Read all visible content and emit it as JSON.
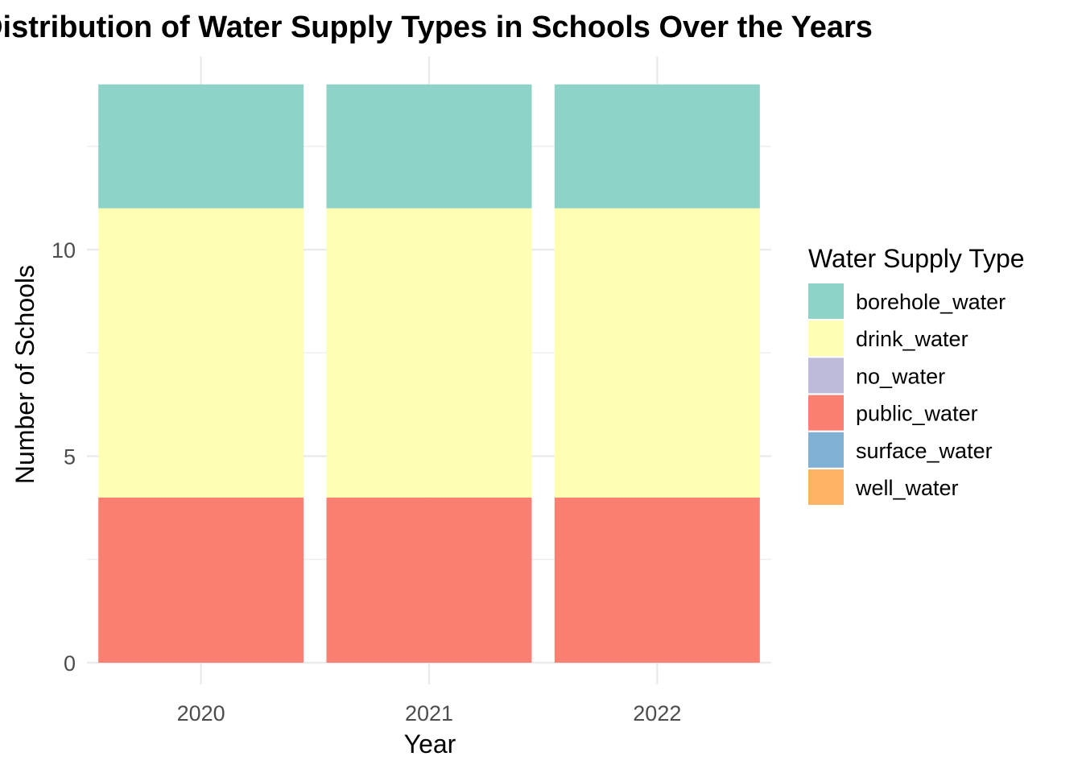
{
  "chart_data": {
    "type": "bar",
    "stacked": true,
    "title": "Distribution of Water Supply Types in Schools Over the Years",
    "xlabel": "Year",
    "ylabel": "Number of Schools",
    "categories": [
      "2020",
      "2021",
      "2022"
    ],
    "y_ticks": [
      0,
      5,
      10
    ],
    "ylim": [
      0,
      14
    ],
    "grid": true,
    "legend_title": "Water Supply Type",
    "legend_position": "right",
    "series": [
      {
        "name": "borehole_water",
        "color": "#8DD3C7",
        "values": [
          3,
          3,
          3
        ]
      },
      {
        "name": "drink_water",
        "color": "#FFFFB3",
        "values": [
          7,
          7,
          7
        ]
      },
      {
        "name": "no_water",
        "color": "#BEBADA",
        "values": [
          0,
          0,
          0
        ]
      },
      {
        "name": "public_water",
        "color": "#FB8072",
        "values": [
          4,
          4,
          4
        ]
      },
      {
        "name": "surface_water",
        "color": "#80B1D3",
        "values": [
          0,
          0,
          0
        ]
      },
      {
        "name": "well_water",
        "color": "#FDB462",
        "values": [
          0,
          0,
          0
        ]
      }
    ]
  }
}
